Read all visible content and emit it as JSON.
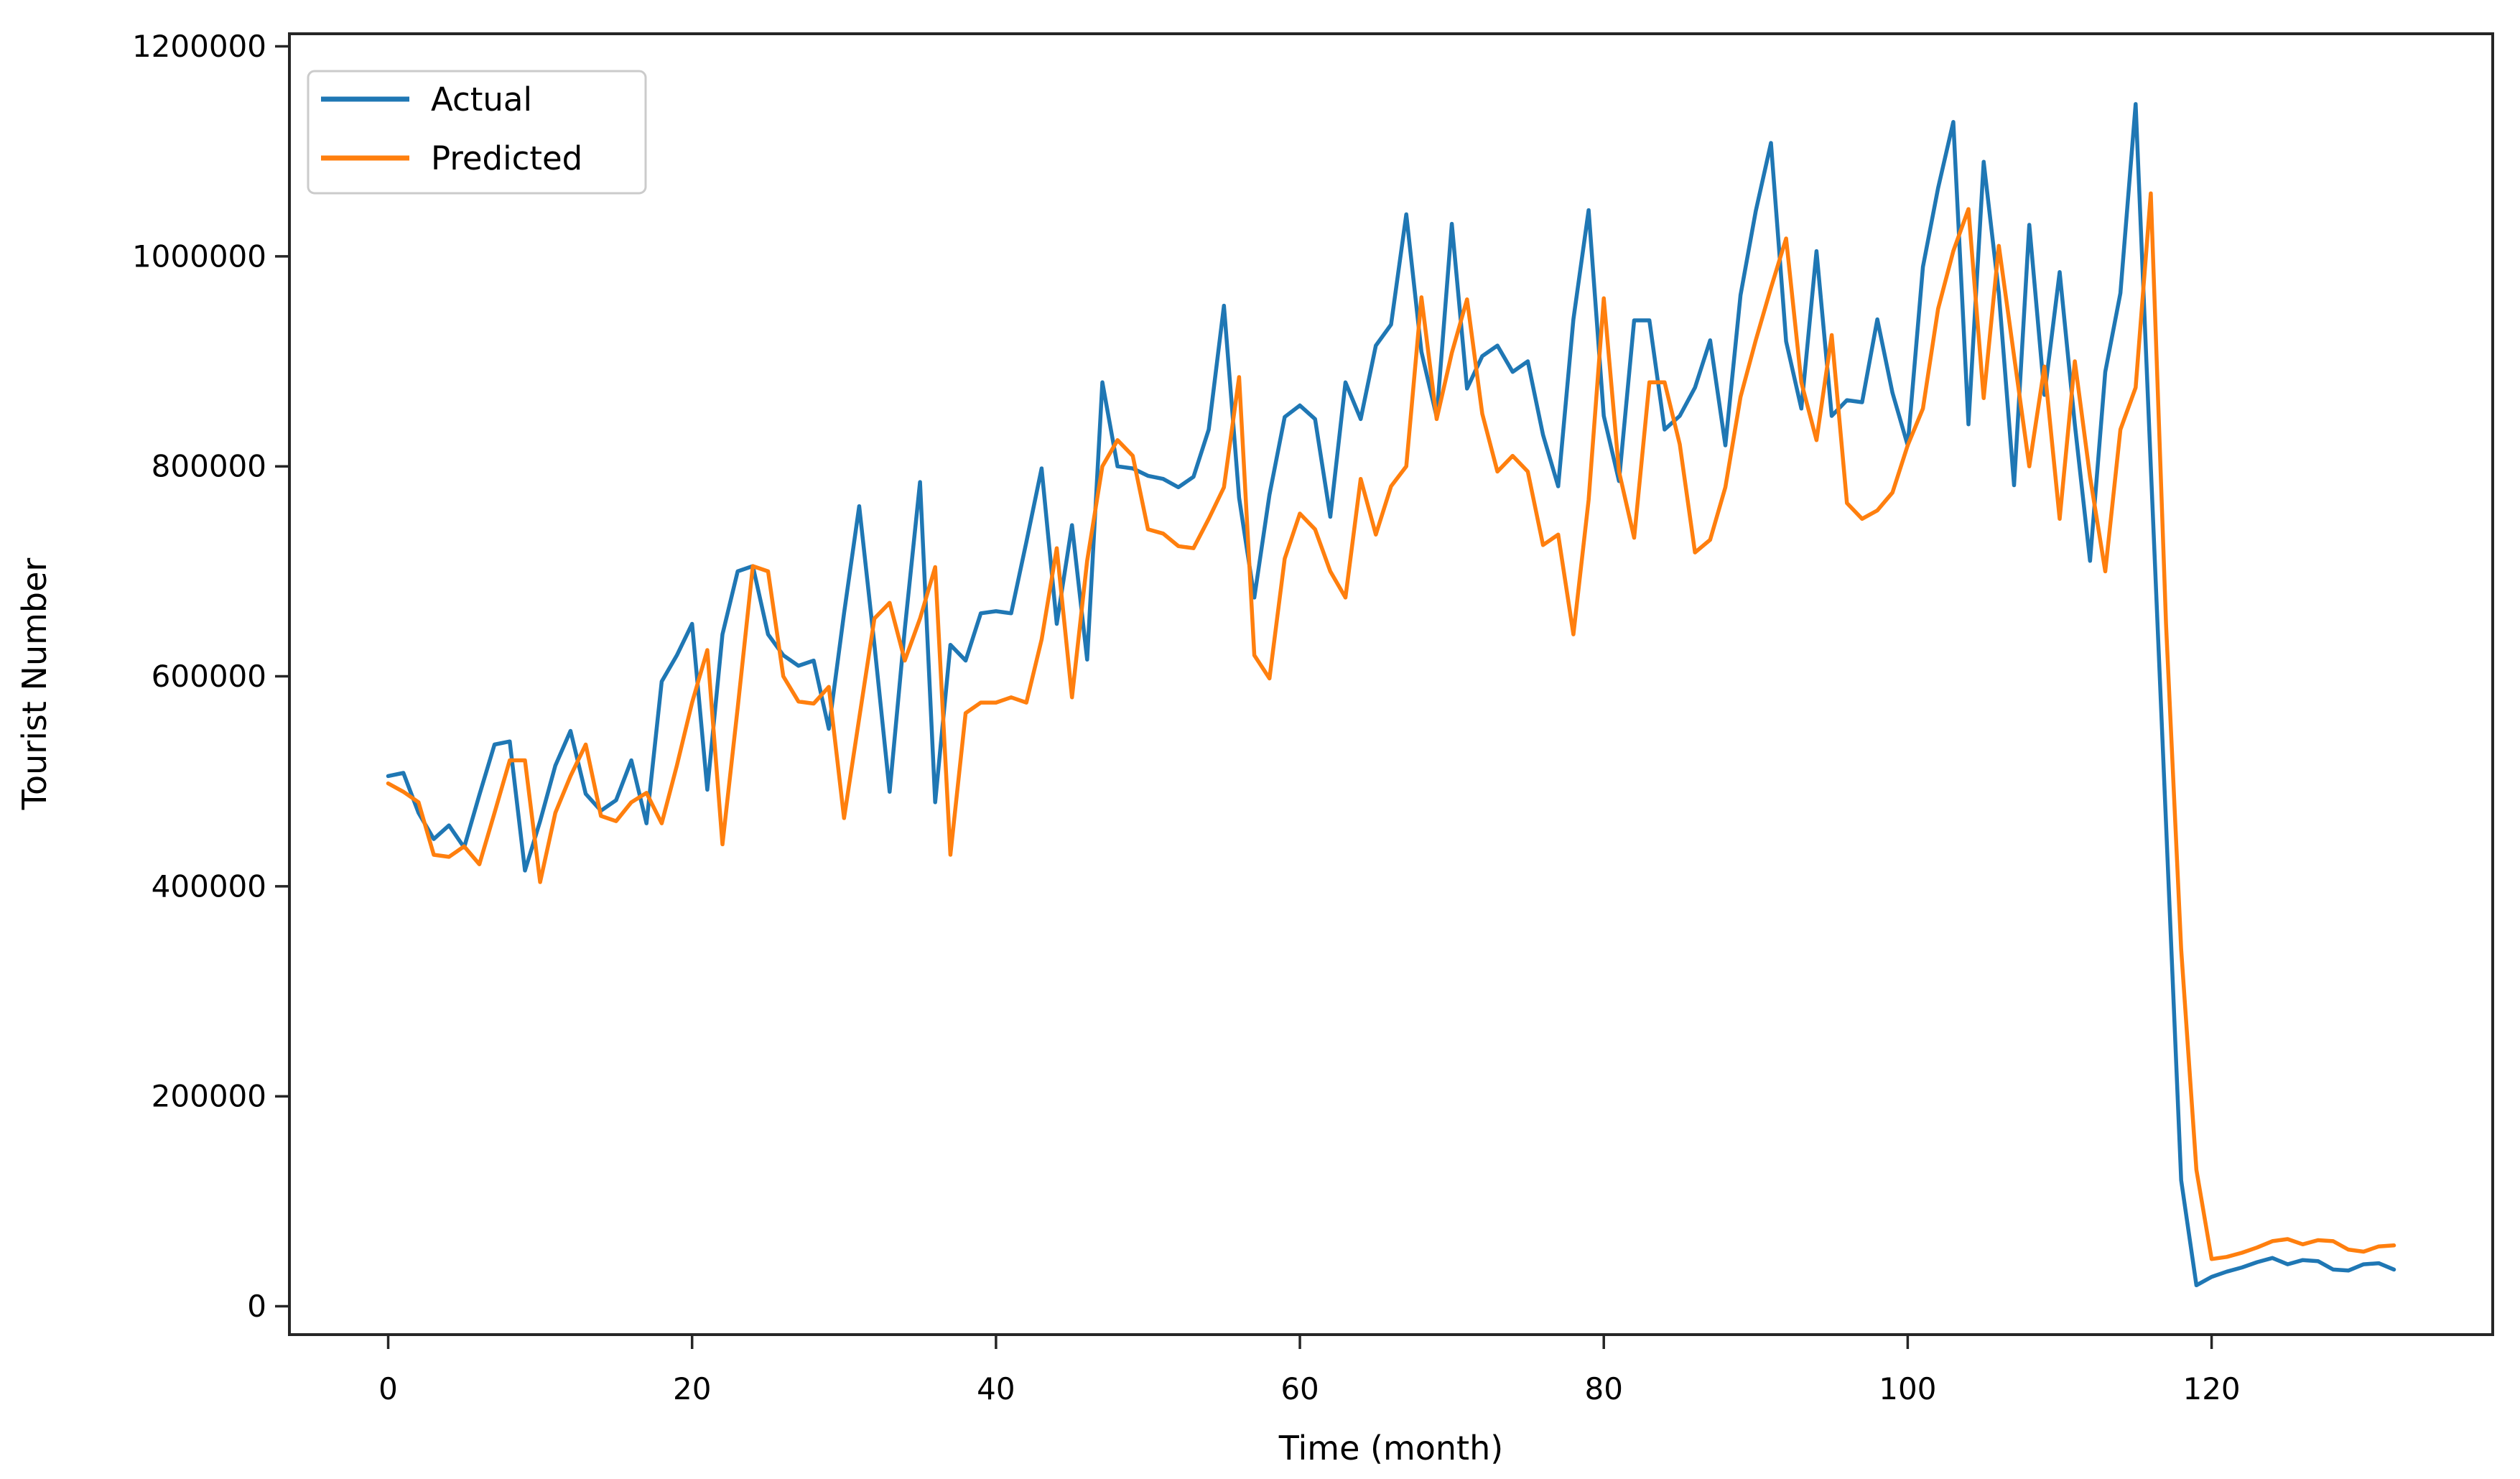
{
  "chart_data": {
    "type": "line",
    "title": "",
    "xlabel": "Time (month)",
    "ylabel": "Tourist Number",
    "x_ticks": [
      0,
      20,
      40,
      60,
      80,
      100,
      120
    ],
    "y_ticks": [
      0,
      200000,
      400000,
      600000,
      800000,
      1000000,
      1200000
    ],
    "xlim": [
      -6.5,
      138.5
    ],
    "ylim": [
      -27000,
      1212000
    ],
    "grid": false,
    "legend": {
      "position": "upper left"
    },
    "colors": {
      "actual": "#1f77b4",
      "predicted": "#ff7f0e",
      "spine": "#262626"
    },
    "x": "month index 0..132, monthly step",
    "series": [
      {
        "name": "Actual",
        "color": "#1f77b4",
        "values": [
          505000,
          508000,
          470000,
          445000,
          458000,
          437000,
          487000,
          535000,
          538000,
          415000,
          462000,
          515000,
          548000,
          488000,
          472000,
          482000,
          520000,
          460000,
          595000,
          620000,
          650000,
          492000,
          640000,
          700000,
          705000,
          640000,
          620000,
          610000,
          615000,
          550000,
          660000,
          762000,
          630000,
          490000,
          645000,
          785000,
          480000,
          630000,
          615000,
          660000,
          662000,
          660000,
          728000,
          798000,
          650000,
          744000,
          616000,
          880000,
          800000,
          798000,
          791000,
          788000,
          780000,
          790000,
          835000,
          953000,
          770000,
          675000,
          773000,
          847000,
          858000,
          845000,
          752000,
          880000,
          845000,
          915000,
          935000,
          1040000,
          909000,
          847000,
          1031000,
          874000,
          905000,
          915000,
          890000,
          900000,
          830000,
          781000,
          940000,
          1044000,
          848000,
          786000,
          939000,
          939000,
          835000,
          848000,
          875000,
          920000,
          820000,
          963000,
          1043000,
          1108000,
          919000,
          855000,
          1005000,
          848000,
          863000,
          861000,
          940000,
          870000,
          820000,
          990000,
          1065000,
          1128000,
          840000,
          1090000,
          965000,
          782000,
          1030000,
          868000,
          985000,
          840000,
          710000,
          890000,
          965000,
          1145000,
          800000,
          460000,
          120000,
          20000,
          28000,
          33000,
          37000,
          42000,
          46000,
          40000,
          44000,
          43000,
          35000,
          34000,
          40000,
          41000,
          35000
        ]
      },
      {
        "name": "Predicted",
        "color": "#ff7f0e",
        "values": [
          498000,
          490000,
          480000,
          430000,
          428000,
          438000,
          421000,
          470000,
          520000,
          520000,
          404000,
          470000,
          505000,
          535000,
          467000,
          462000,
          480000,
          489000,
          460000,
          515000,
          575000,
          625000,
          440000,
          570000,
          705000,
          700000,
          600000,
          576000,
          574000,
          590000,
          465000,
          560000,
          655000,
          670000,
          615000,
          655000,
          704000,
          430000,
          565000,
          575000,
          575000,
          580000,
          575000,
          635000,
          722000,
          580000,
          710000,
          800000,
          825000,
          810000,
          740000,
          736000,
          724000,
          722000,
          750000,
          780000,
          885000,
          620000,
          598000,
          712000,
          755000,
          740000,
          700000,
          675000,
          788000,
          735000,
          781000,
          800000,
          961000,
          845000,
          908000,
          959000,
          850000,
          795000,
          810000,
          795000,
          725000,
          735000,
          640000,
          768000,
          960000,
          795000,
          732000,
          880000,
          880000,
          821000,
          718000,
          730000,
          780000,
          866000,
          920000,
          970000,
          1017000,
          880000,
          825000,
          925000,
          765000,
          750000,
          758000,
          775000,
          820000,
          855000,
          950000,
          1005000,
          1045000,
          865000,
          1010000,
          905000,
          800000,
          895000,
          750000,
          900000,
          790000,
          700000,
          835000,
          875000,
          1060000,
          650000,
          340000,
          130000,
          45000,
          47000,
          51000,
          56000,
          62000,
          64000,
          59000,
          63000,
          62000,
          54000,
          52000,
          57000,
          58000
        ]
      }
    ]
  }
}
